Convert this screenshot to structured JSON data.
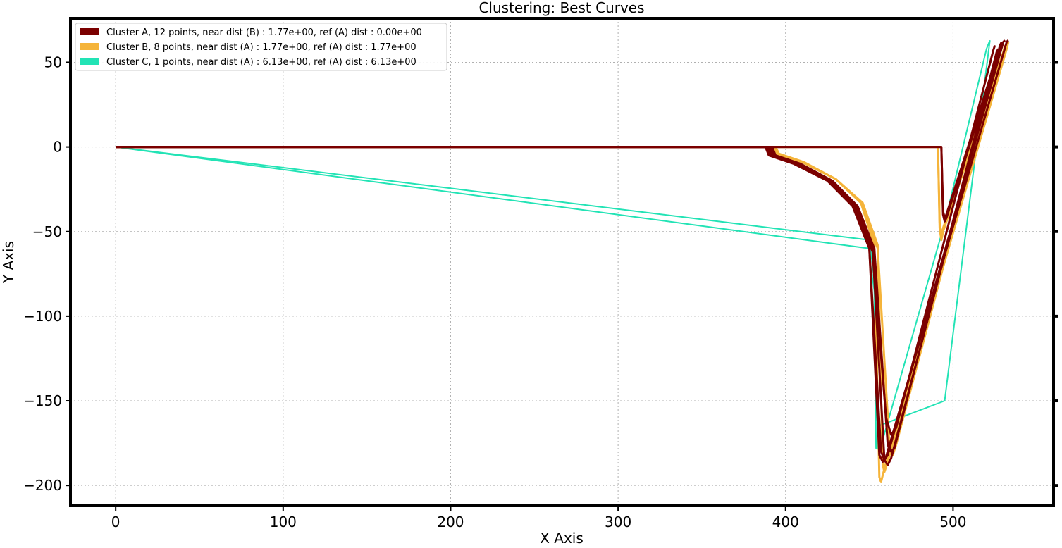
{
  "chart_data": {
    "type": "line",
    "title": "Clustering: Best Curves",
    "xlabel": "X Axis",
    "ylabel": "Y Axis",
    "xlim": [
      -27,
      560
    ],
    "ylim": [
      -212,
      76
    ],
    "xticks": [
      0,
      100,
      200,
      300,
      400,
      500
    ],
    "yticks": [
      50,
      0,
      -50,
      -100,
      -150,
      -200
    ],
    "xtick_labels": [
      "0",
      "100",
      "200",
      "300",
      "400",
      "500"
    ],
    "ytick_labels": [
      "50",
      "0",
      "−50",
      "−100",
      "−150",
      "−200"
    ],
    "grid": true,
    "legend_position": "top-left",
    "colors": {
      "A": "#7b0000",
      "B": "#f5b43a",
      "C": "#22e3b5"
    },
    "legend": [
      {
        "key": "A",
        "label": "Cluster A, 12 points, near dist (B) : 1.77e+00, ref (A) dist : 0.00e+00"
      },
      {
        "key": "B",
        "label": "Cluster B, 8 points, near dist (A) : 1.77e+00, ref (A) dist : 1.77e+00"
      },
      {
        "key": "C",
        "label": "Cluster C, 1 points, near dist (A) : 6.13e+00, ref (A) dist : 6.13e+00"
      }
    ],
    "series": [
      {
        "cluster": "A",
        "x": [
          0,
          388,
          390,
          405,
          425,
          440,
          450,
          457,
          459,
          461,
          530,
          531
        ],
        "y": [
          0,
          0,
          -5,
          -10,
          -20,
          -35,
          -60,
          -180,
          -185,
          -182,
          62,
          63
        ]
      },
      {
        "cluster": "A",
        "x": [
          0,
          390,
          392,
          407,
          427,
          442,
          452,
          459,
          461,
          463,
          528,
          529
        ],
        "y": [
          0,
          0,
          -5,
          -10,
          -20,
          -35,
          -60,
          -185,
          -188,
          -184,
          60,
          62
        ]
      },
      {
        "cluster": "A",
        "x": [
          0,
          392,
          394,
          409,
          428,
          443,
          453,
          461,
          463,
          465,
          526,
          527
        ],
        "y": [
          0,
          0,
          -5,
          -10,
          -20,
          -35,
          -60,
          -176,
          -180,
          -178,
          56,
          58
        ]
      },
      {
        "cluster": "A",
        "x": [
          0,
          389,
          391,
          406,
          426,
          441,
          450,
          456,
          458,
          460,
          532,
          533
        ],
        "y": [
          0,
          0,
          -5,
          -10,
          -20,
          -35,
          -60,
          -182,
          -186,
          -183,
          62,
          63
        ]
      },
      {
        "cluster": "A",
        "x": [
          0,
          391,
          393,
          408,
          427,
          442,
          452,
          460,
          463,
          466,
          524,
          525
        ],
        "y": [
          0,
          0,
          -5,
          -10,
          -20,
          -36,
          -62,
          -160,
          -170,
          -166,
          57,
          60
        ]
      },
      {
        "cluster": "A",
        "x": [
          0,
          493,
          494,
          495,
          496,
          529,
          530
        ],
        "y": [
          0,
          0,
          -40,
          -44,
          -42,
          60,
          62
        ]
      },
      {
        "cluster": "A",
        "x": [
          0,
          493,
          494,
          495,
          496,
          527,
          528
        ],
        "y": [
          0,
          0,
          -38,
          -42,
          -40,
          56,
          58
        ]
      },
      {
        "cluster": "B",
        "x": [
          0,
          392,
          394,
          410,
          430,
          445,
          453,
          456,
          457,
          459,
          532,
          533
        ],
        "y": [
          0,
          0,
          -4,
          -9,
          -19,
          -33,
          -58,
          -195,
          -198,
          -190,
          58,
          62
        ]
      },
      {
        "cluster": "B",
        "x": [
          0,
          394,
          396,
          411,
          430,
          446,
          455,
          458,
          459,
          461,
          530,
          531
        ],
        "y": [
          0,
          0,
          -4,
          -9,
          -19,
          -33,
          -58,
          -188,
          -192,
          -186,
          56,
          60
        ]
      },
      {
        "cluster": "B",
        "x": [
          0,
          393,
          395,
          410,
          430,
          445,
          455,
          462,
          464,
          466,
          528,
          529
        ],
        "y": [
          0,
          0,
          -4,
          -9,
          -19,
          -33,
          -60,
          -176,
          -182,
          -176,
          56,
          60
        ]
      },
      {
        "cluster": "B",
        "x": [
          0,
          491,
          492,
          493,
          494,
          531,
          532
        ],
        "y": [
          0,
          0,
          -48,
          -55,
          -50,
          58,
          62
        ]
      },
      {
        "cluster": "B",
        "x": [
          0,
          491,
          492,
          493,
          494,
          530,
          531
        ],
        "y": [
          0,
          0,
          -45,
          -52,
          -48,
          56,
          60
        ]
      },
      {
        "cluster": "C",
        "x": [
          0,
          450,
          452,
          453,
          455,
          456,
          495,
          520,
          522
        ],
        "y": [
          0,
          -55,
          -70,
          -80,
          -178,
          -180,
          -45,
          58,
          63
        ]
      },
      {
        "cluster": "C",
        "x": [
          0,
          450,
          451,
          453,
          454,
          456,
          455,
          495,
          522
        ],
        "y": [
          0,
          -60,
          -72,
          -85,
          -178,
          -172,
          -165,
          -150,
          63
        ]
      }
    ]
  }
}
